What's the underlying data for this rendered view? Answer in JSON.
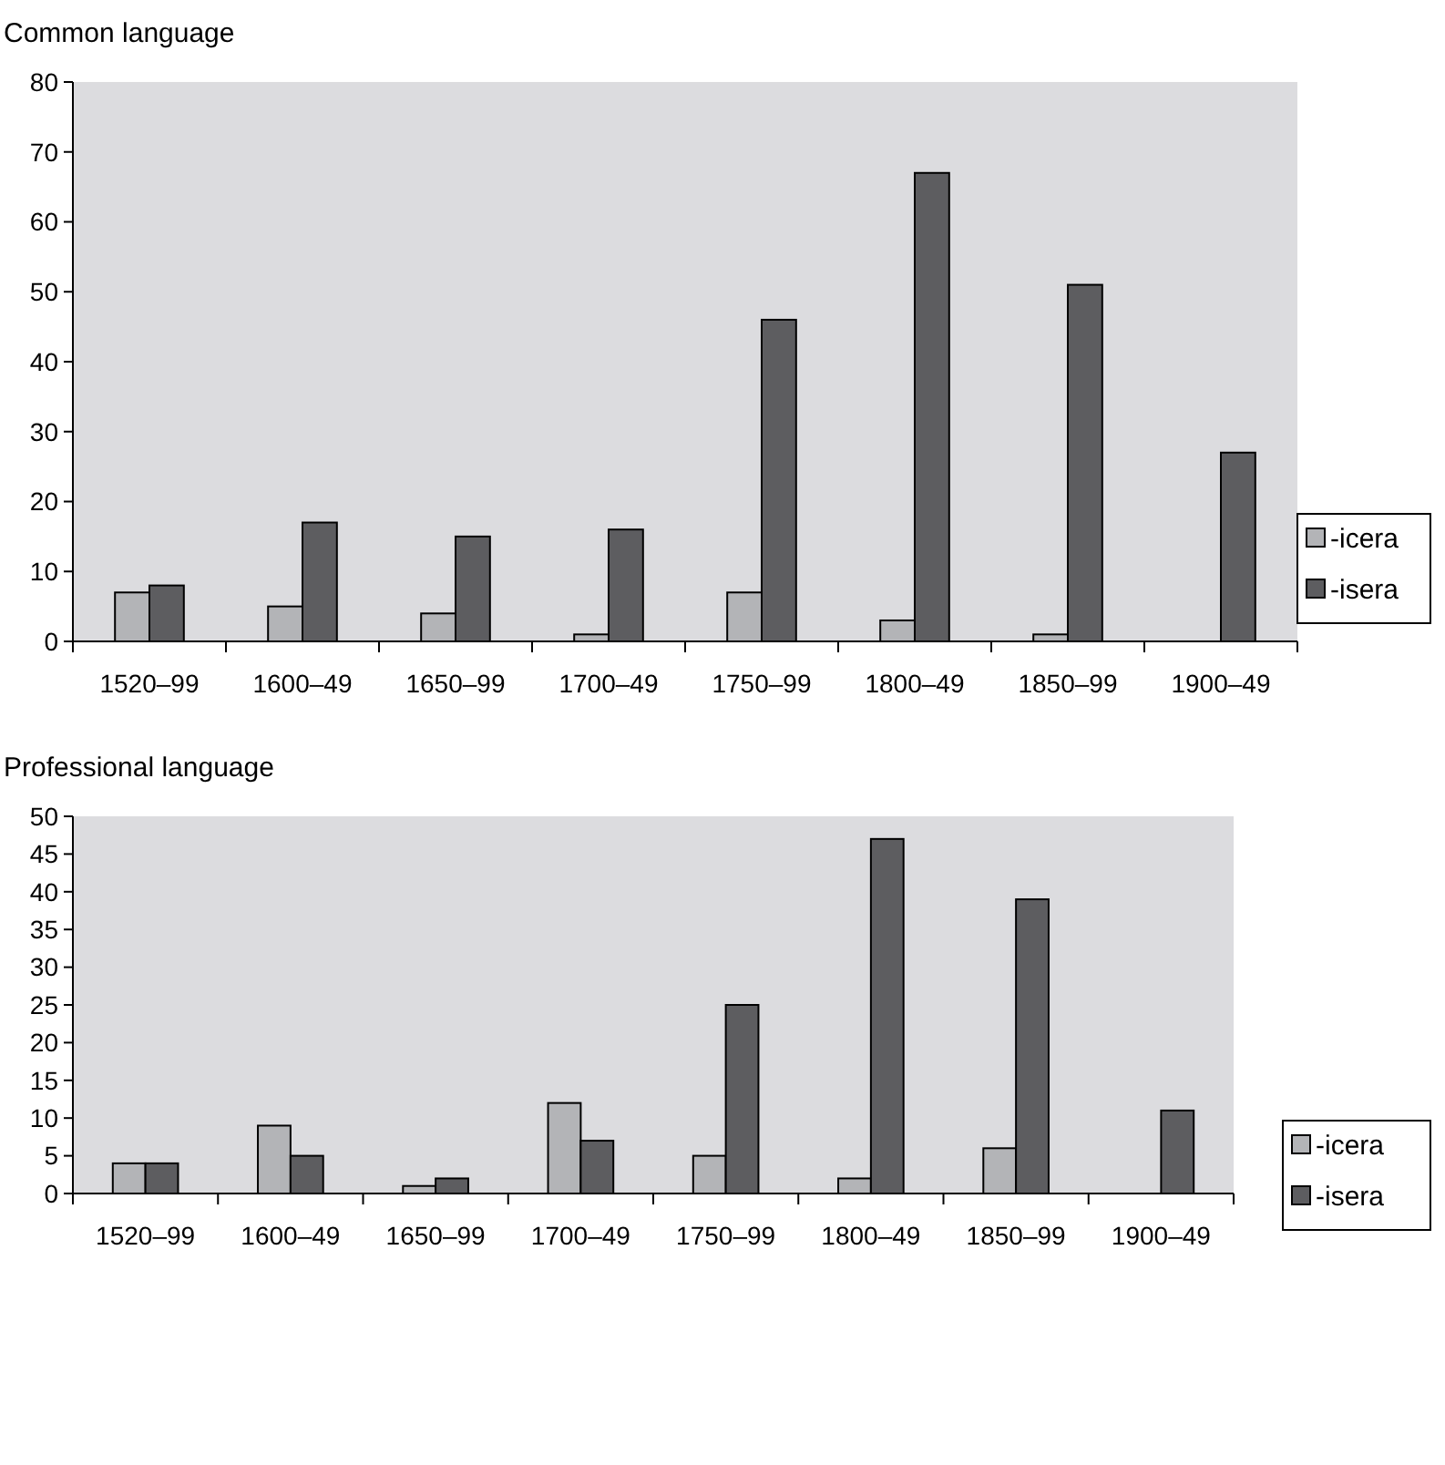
{
  "chart_data": [
    {
      "type": "bar",
      "title": "Common language",
      "categories": [
        "1520–99",
        "1600–49",
        "1650–99",
        "1700–49",
        "1750–99",
        "1800–49",
        "1850–99",
        "1900–49"
      ],
      "series": [
        {
          "name": "-icera",
          "color": "#b3b4b7",
          "values": [
            7,
            5,
            4,
            1,
            7,
            3,
            1,
            0
          ]
        },
        {
          "name": "-isera",
          "color": "#5d5d60",
          "values": [
            8,
            17,
            15,
            16,
            46,
            67,
            51,
            27
          ]
        }
      ],
      "ylim": [
        0,
        80
      ],
      "yticks": [
        0,
        10,
        20,
        30,
        40,
        50,
        60,
        70,
        80
      ],
      "grid": false,
      "legend": "right"
    },
    {
      "type": "bar",
      "title": "Professional language",
      "categories": [
        "1520–99",
        "1600–49",
        "1650–99",
        "1700–49",
        "1750–99",
        "1800–49",
        "1850–99",
        "1900–49"
      ],
      "series": [
        {
          "name": "-icera",
          "color": "#b3b4b7",
          "values": [
            4,
            9,
            1,
            12,
            5,
            2,
            6,
            0
          ]
        },
        {
          "name": "-isera",
          "color": "#5d5d60",
          "values": [
            4,
            5,
            2,
            7,
            25,
            47,
            39,
            11
          ]
        }
      ],
      "ylim": [
        0,
        50
      ],
      "yticks": [
        0,
        5,
        10,
        15,
        20,
        25,
        30,
        35,
        40,
        45,
        50
      ],
      "grid": false,
      "legend": "right"
    }
  ]
}
